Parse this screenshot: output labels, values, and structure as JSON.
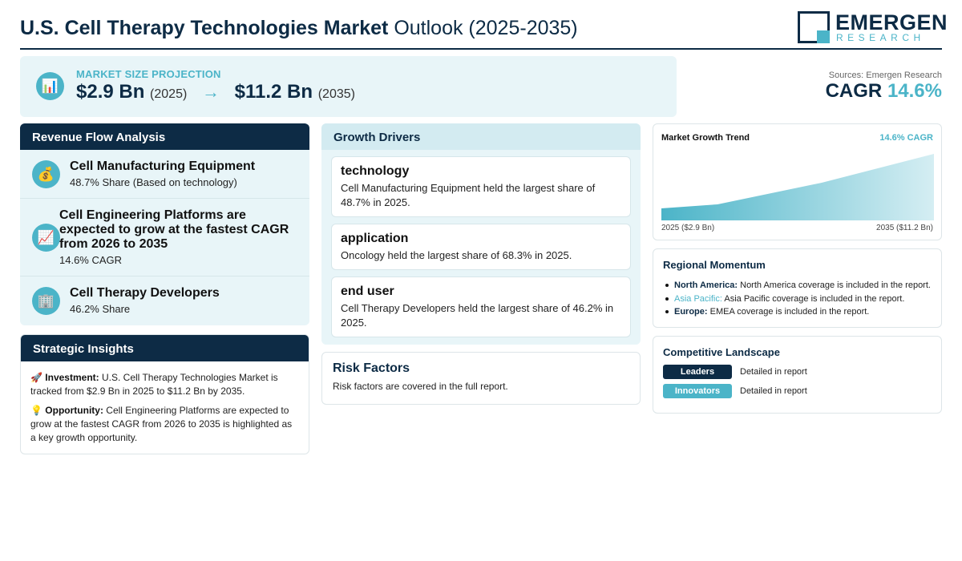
{
  "header": {
    "title_bold": "U.S. Cell Therapy Technologies Market",
    "title_rest": " Outlook (2025-2035)",
    "logo_name": "EMERGEN",
    "logo_sub": "RESEARCH"
  },
  "banner": {
    "icon": "bar-chart-icon",
    "label": "MARKET SIZE PROJECTION",
    "value_start": "$2.9 Bn",
    "year_start": "(2025)",
    "arrow": "→",
    "value_end": "$11.2 Bn",
    "year_end": "(2035)"
  },
  "summary": {
    "sources": "Sources: Emergen Research",
    "cagr_label": "CAGR",
    "cagr_value": "14.6%"
  },
  "revenue_flow": {
    "heading": "Revenue Flow Analysis",
    "items": [
      {
        "icon": "money-bag-icon",
        "title": "Cell Manufacturing Equipment",
        "sub": "48.7% Share (Based on technology)"
      },
      {
        "icon": "trend-up-icon",
        "title": "Cell Engineering Platforms are expected to grow at the fastest CAGR from 2026 to 2035",
        "sub": "14.6% CAGR"
      },
      {
        "icon": "building-icon",
        "title": "Cell Therapy Developers",
        "sub": "46.2% Share"
      }
    ]
  },
  "strategic": {
    "heading": "Strategic Insights",
    "investment_label": "Investment:",
    "investment_text": " U.S. Cell Therapy Technologies Market is tracked from $2.9 Bn in 2025 to $11.2 Bn by 2035.",
    "opportunity_label": "Opportunity:",
    "opportunity_text": " Cell Engineering Platforms are expected to grow at the fastest CAGR from 2026 to 2035 is highlighted as a key growth opportunity."
  },
  "drivers": {
    "heading": "Growth Drivers",
    "cards": [
      {
        "title": "technology",
        "text": "Cell Manufacturing Equipment held the largest share of 48.7% in 2025."
      },
      {
        "title": "application",
        "text": "Oncology held the largest share of 68.3% in 2025."
      },
      {
        "title": "end user",
        "text": "Cell Therapy Developers held the largest share of 46.2% in 2025."
      }
    ]
  },
  "risk": {
    "title": "Risk Factors",
    "text": "Risk factors are covered in the full report."
  },
  "trend": {
    "title": "Market Growth Trend",
    "cagr": "14.6% CAGR",
    "x_start": "2025 ($2.9 Bn)",
    "x_end": "2035 ($11.2 Bn)",
    "colors": {
      "fill_start": "#4bb4c8",
      "fill_end": "#d5eef3"
    }
  },
  "regional": {
    "title": "Regional Momentum",
    "items": [
      {
        "name": "North America:",
        "text": " North America coverage is included in the report."
      },
      {
        "name": "Asia Pacific:",
        "text": " Asia Pacific coverage is included in the report."
      },
      {
        "name": "Europe:",
        "text": " EMEA coverage is included in the report."
      }
    ]
  },
  "competitive": {
    "title": "Competitive Landscape",
    "rows": [
      {
        "badge": "Leaders",
        "text": "Detailed in report"
      },
      {
        "badge": "Innovators",
        "text": "Detailed in report"
      }
    ]
  },
  "colors": {
    "navy": "#0d2b45",
    "teal": "#4bb4c8",
    "panel_bg": "#e8f5f8"
  }
}
